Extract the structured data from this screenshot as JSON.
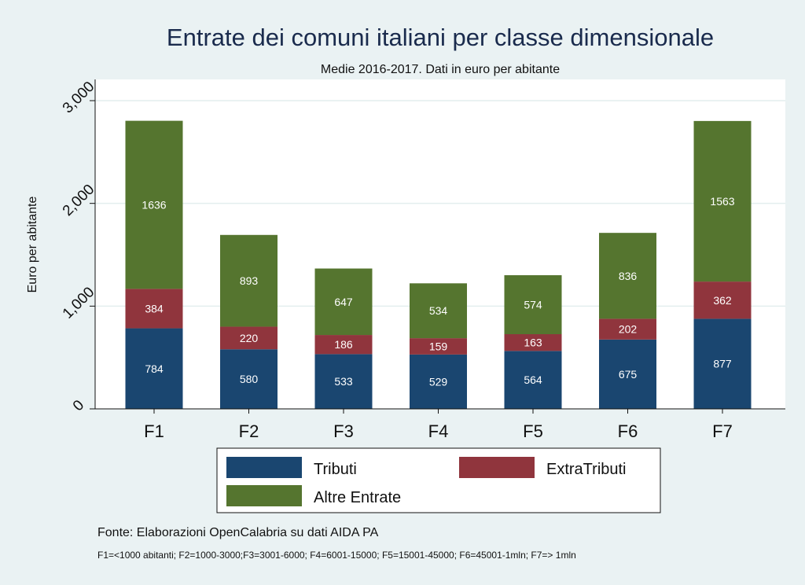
{
  "chart_data": {
    "type": "bar",
    "stacked": true,
    "title": "Entrate dei comuni italiani per classe dimensionale",
    "subtitle": "Medie 2016-2017. Dati in euro per abitante",
    "ylabel": "Euro per abitante",
    "xlabel": "",
    "ylim": [
      0,
      3000
    ],
    "yticks": [
      0,
      1000,
      2000,
      3000
    ],
    "ytick_labels": [
      "0",
      "1,000",
      "2,000",
      "3,000"
    ],
    "grid": true,
    "categories": [
      "F1",
      "F2",
      "F3",
      "F4",
      "F5",
      "F6",
      "F7"
    ],
    "series": [
      {
        "name": "Tributi",
        "color": "#1a4670",
        "values": [
          784,
          580,
          533,
          529,
          564,
          675,
          877
        ]
      },
      {
        "name": "ExtraTributi",
        "color": "#90353d",
        "values": [
          384,
          220,
          186,
          159,
          163,
          202,
          362
        ]
      },
      {
        "name": "Altre Entrate",
        "color": "#55752f",
        "values": [
          1636,
          893,
          647,
          534,
          574,
          836,
          1563
        ]
      }
    ],
    "legend_position": "bottom",
    "source": "Fonte: Elaborazioni OpenCalabria su dati AIDA PA",
    "note": "F1=<1000 abitanti; F2=1000-3000;F3=3001-6000; F4=6001-15000; F5=15001-45000; F6=45001-1mln; F7=> 1mln"
  }
}
